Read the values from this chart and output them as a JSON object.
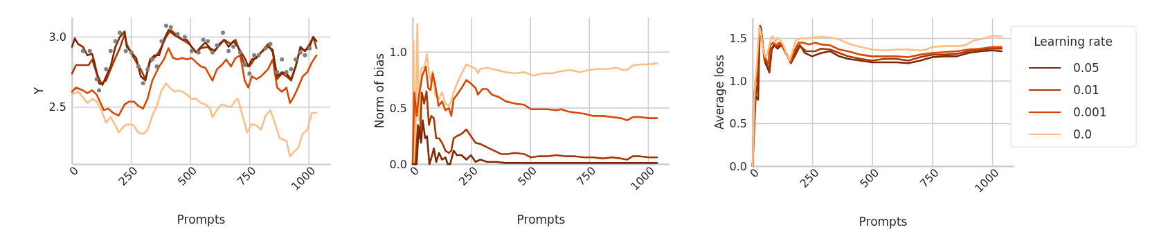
{
  "chart_data": [
    {
      "type": "line",
      "xlabel": "Prompts",
      "ylabel": "Y",
      "xlim": [
        0,
        1090
      ],
      "ylim": [
        2.095,
        3.14
      ],
      "xticks": [
        0,
        250,
        500,
        750,
        1000
      ],
      "yticks": [
        {
          "value": 2.5,
          "label": "2.5"
        },
        {
          "value": 3,
          "label": "3.0"
        }
      ],
      "grid": true,
      "series": [
        {
          "color": "#fdbe85",
          "x": [
            0,
            26,
            46,
            65,
            85,
            104,
            124,
            144,
            163,
            183,
            197,
            222,
            241,
            261,
            280,
            300,
            319,
            339,
            358,
            378,
            397,
            417,
            437,
            446,
            466,
            485,
            505,
            524,
            544,
            563,
            583,
            593,
            612,
            632,
            651,
            671,
            690,
            700,
            720,
            739,
            759,
            778,
            798,
            817,
            837,
            856,
            876,
            905,
            920,
            935,
            954,
            974,
            993,
            1013,
            1032
          ],
          "values": [
            2.59,
            2.61,
            2.57,
            2.53,
            2.56,
            2.54,
            2.48,
            2.39,
            2.43,
            2.37,
            2.32,
            2.37,
            2.38,
            2.37,
            2.32,
            2.31,
            2.34,
            2.44,
            2.51,
            2.62,
            2.67,
            2.63,
            2.61,
            2.62,
            2.61,
            2.59,
            2.56,
            2.56,
            2.53,
            2.52,
            2.49,
            2.43,
            2.48,
            2.52,
            2.51,
            2.5,
            2.55,
            2.56,
            2.44,
            2.32,
            2.38,
            2.37,
            2.34,
            2.44,
            2.48,
            2.39,
            2.28,
            2.26,
            2.15,
            2.18,
            2.21,
            2.31,
            2.34,
            2.46,
            2.46
          ]
        },
        {
          "color": "#d94801",
          "x": [
            0,
            17,
            46,
            65,
            85,
            104,
            134,
            153,
            173,
            197,
            222,
            241,
            261,
            280,
            300,
            319,
            339,
            368,
            388,
            407,
            427,
            446,
            466,
            485,
            505,
            524,
            544,
            563,
            593,
            612,
            632,
            651,
            671,
            690,
            710,
            729,
            744,
            759,
            778,
            798,
            827,
            847,
            866,
            886,
            905,
            920,
            935,
            954,
            974,
            993,
            1013,
            1032
          ],
          "values": [
            2.61,
            2.64,
            2.62,
            2.6,
            2.62,
            2.59,
            2.48,
            2.49,
            2.46,
            2.44,
            2.52,
            2.54,
            2.54,
            2.51,
            2.49,
            2.56,
            2.69,
            2.79,
            2.84,
            2.92,
            2.85,
            2.84,
            2.85,
            2.84,
            2.85,
            2.82,
            2.79,
            2.78,
            2.69,
            2.77,
            2.8,
            2.84,
            2.79,
            2.85,
            2.87,
            2.69,
            2.64,
            2.72,
            2.7,
            2.72,
            2.77,
            2.84,
            2.64,
            2.61,
            2.64,
            2.53,
            2.57,
            2.64,
            2.72,
            2.75,
            2.82,
            2.87
          ]
        },
        {
          "color": "#a63603",
          "x": [
            0,
            17,
            46,
            70,
            85,
            104,
            124,
            144,
            163,
            183,
            202,
            222,
            231,
            261,
            290,
            310,
            329,
            358,
            378,
            397,
            417,
            437,
            466,
            495,
            524,
            544,
            573,
            593,
            622,
            642,
            671,
            690,
            710,
            729,
            749,
            769,
            798,
            827,
            847,
            866,
            886,
            905,
            925,
            944,
            964,
            983,
            1003,
            1018,
            1032
          ],
          "values": [
            2.74,
            2.8,
            2.8,
            2.8,
            2.84,
            2.74,
            2.67,
            2.69,
            2.77,
            2.85,
            2.92,
            3.02,
            2.95,
            2.85,
            2.77,
            2.7,
            2.82,
            2.87,
            2.93,
            3.0,
            3.05,
            3.02,
            2.98,
            2.95,
            2.89,
            2.92,
            2.93,
            2.89,
            2.94,
            2.98,
            2.95,
            2.98,
            2.89,
            2.8,
            2.79,
            2.84,
            2.89,
            2.95,
            2.89,
            2.7,
            2.74,
            2.72,
            2.69,
            2.79,
            2.92,
            2.9,
            2.95,
            3.0,
            2.92
          ]
        },
        {
          "color": "#7f2704",
          "x": [
            0,
            12,
            26,
            46,
            65,
            85,
            95,
            114,
            129,
            144,
            163,
            183,
            202,
            222,
            231,
            251,
            271,
            290,
            310,
            329,
            349,
            368,
            388,
            407,
            427,
            446,
            466,
            485,
            505,
            524,
            544,
            563,
            583,
            603,
            622,
            642,
            661,
            681,
            700,
            729,
            744,
            759,
            778,
            798,
            827,
            847,
            866,
            886,
            905,
            925,
            944,
            964,
            983,
            1003,
            1018,
            1032
          ],
          "values": [
            2.93,
            2.99,
            2.95,
            2.93,
            2.87,
            2.88,
            2.82,
            2.67,
            2.66,
            2.72,
            2.79,
            2.93,
            3.0,
            3.04,
            2.93,
            2.89,
            2.85,
            2.72,
            2.69,
            2.84,
            2.87,
            2.87,
            2.98,
            3.05,
            3.02,
            3.0,
            2.98,
            2.98,
            2.93,
            2.89,
            2.93,
            2.96,
            2.92,
            2.9,
            2.95,
            2.98,
            2.93,
            2.97,
            2.93,
            2.85,
            2.79,
            2.84,
            2.85,
            2.89,
            2.93,
            2.91,
            2.72,
            2.75,
            2.74,
            2.7,
            2.79,
            2.93,
            2.9,
            2.93,
            3.0,
            2.97
          ]
        },
        {
          "type": "scatter",
          "marker": "circle",
          "color": "#808080",
          "x": [
            46,
            75,
            104,
            114,
            144,
            163,
            183,
            202,
            227,
            251,
            280,
            300,
            319,
            339,
            358,
            378,
            397,
            417,
            446,
            476,
            505,
            534,
            554,
            573,
            593,
            612,
            637,
            661,
            681,
            710,
            729,
            749,
            769,
            788,
            817,
            837,
            866,
            886,
            905,
            925,
            944,
            964,
            983,
            1003
          ],
          "values": [
            2.9,
            2.9,
            2.7,
            2.62,
            2.77,
            2.9,
            2.97,
            3.03,
            2.9,
            2.89,
            2.79,
            2.67,
            2.77,
            2.84,
            2.79,
            2.97,
            3.08,
            3.07,
            3.02,
            3.0,
            2.9,
            2.89,
            2.98,
            2.97,
            2.89,
            2.94,
            3.03,
            2.9,
            2.93,
            2.89,
            2.8,
            2.74,
            2.87,
            2.87,
            2.92,
            2.95,
            2.75,
            2.84,
            2.75,
            2.77,
            2.84,
            2.89,
            2.87,
            2.92
          ]
        }
      ]
    },
    {
      "type": "line",
      "xlabel": "Prompts",
      "ylabel": "Norm of bias",
      "xlim": [
        0,
        1090
      ],
      "ylim": [
        0,
        1.31
      ],
      "xticks": [
        0,
        250,
        500,
        750,
        1000
      ],
      "yticks": [
        {
          "value": 0,
          "label": "0.0"
        },
        {
          "value": 0.5,
          "label": "0.5"
        },
        {
          "value": 1,
          "label": "1.0"
        }
      ],
      "grid": true,
      "series": [
        {
          "color": "#fdbe85",
          "x": [
            0,
            4,
            10,
            20,
            26,
            36,
            51,
            61,
            71,
            80,
            85,
            95,
            110,
            125,
            139,
            154,
            164,
            174,
            188,
            208,
            228,
            247,
            267,
            277,
            287,
            316,
            355,
            395,
            434,
            473,
            512,
            552,
            591,
            630,
            669,
            709,
            748,
            787,
            826,
            866,
            891,
            910,
            934,
            964,
            1003,
            1037
          ],
          "values": [
            0,
            1.1,
            0,
            1.25,
            0.39,
            0.85,
            0.87,
            0.98,
            0.79,
            0.72,
            0.83,
            0.62,
            0.58,
            0.64,
            0.54,
            0.52,
            0.56,
            0.64,
            0.72,
            0.81,
            0.89,
            0.87,
            0.85,
            0.81,
            0.85,
            0.86,
            0.84,
            0.82,
            0.81,
            0.82,
            0.79,
            0.81,
            0.81,
            0.83,
            0.84,
            0.82,
            0.84,
            0.85,
            0.85,
            0.86,
            0.84,
            0.84,
            0.88,
            0.89,
            0.89,
            0.9
          ]
        },
        {
          "color": "#d94801",
          "x": [
            0,
            7,
            17,
            26,
            41,
            56,
            66,
            76,
            85,
            95,
            110,
            125,
            139,
            154,
            164,
            174,
            188,
            208,
            228,
            247,
            267,
            277,
            296,
            316,
            336,
            365,
            395,
            434,
            473,
            502,
            532,
            571,
            610,
            630,
            659,
            689,
            728,
            767,
            807,
            846,
            885,
            910,
            934,
            964,
            1003,
            1037
          ],
          "values": [
            0,
            0.64,
            0.43,
            0.6,
            0.79,
            0.87,
            0.68,
            0.66,
            0.81,
            0.72,
            0.52,
            0.56,
            0.48,
            0.5,
            0.43,
            0.58,
            0.62,
            0.68,
            0.75,
            0.72,
            0.68,
            0.62,
            0.67,
            0.67,
            0.62,
            0.6,
            0.56,
            0.54,
            0.53,
            0.49,
            0.49,
            0.49,
            0.48,
            0.49,
            0.47,
            0.46,
            0.45,
            0.43,
            0.43,
            0.42,
            0.41,
            0.39,
            0.42,
            0.42,
            0.41,
            0.41
          ]
        },
        {
          "color": "#a63603",
          "x": [
            0,
            12,
            22,
            31,
            39,
            49,
            59,
            69,
            79,
            90,
            100,
            112,
            125,
            139,
            154,
            164,
            174,
            188,
            208,
            228,
            247,
            267,
            287,
            306,
            326,
            355,
            375,
            404,
            434,
            473,
            502,
            532,
            571,
            610,
            650,
            689,
            728,
            767,
            807,
            846,
            885,
            910,
            934,
            964,
            1003,
            1037
          ],
          "values": [
            0,
            0,
            0.35,
            0.23,
            0.64,
            0.54,
            0.65,
            0.35,
            0.43,
            0.41,
            0.23,
            0.23,
            0.19,
            0.12,
            0.1,
            0.12,
            0.23,
            0.25,
            0.27,
            0.31,
            0.25,
            0.19,
            0.18,
            0.16,
            0.14,
            0.11,
            0.09,
            0.09,
            0.1,
            0.09,
            0.06,
            0.07,
            0.07,
            0.08,
            0.07,
            0.07,
            0.06,
            0.06,
            0.05,
            0.06,
            0.05,
            0.04,
            0.07,
            0.07,
            0.06,
            0.06
          ]
        },
        {
          "color": "#7f2704",
          "x": [
            0,
            17,
            26,
            36,
            43,
            53,
            61,
            71,
            80,
            90,
            100,
            112,
            125,
            139,
            149,
            159,
            174,
            188,
            208,
            228,
            247,
            267,
            287,
            316,
            355,
            395,
            434,
            473,
            512,
            552,
            591,
            630,
            669,
            709,
            748,
            787,
            826,
            866,
            910,
            964,
            1003,
            1037
          ],
          "values": [
            0,
            0,
            0.33,
            0.19,
            0.39,
            0.23,
            0.25,
            0,
            0.06,
            0.14,
            0.02,
            0.1,
            0.04,
            0.06,
            0,
            0,
            0.12,
            0.08,
            0.08,
            0.04,
            0.08,
            0.02,
            0.04,
            0.02,
            0.02,
            0.01,
            0.01,
            0.01,
            0.01,
            0.01,
            0.01,
            0.01,
            0.01,
            0.01,
            0.01,
            0.01,
            0.01,
            0.01,
            0.01,
            0.01,
            0.01,
            0.01
          ]
        }
      ]
    },
    {
      "type": "line",
      "xlabel": "Prompts",
      "ylabel": "Average loss",
      "legend_title": "Learning rate",
      "legend": "right",
      "xlim": [
        0,
        1088
      ],
      "ylim": [
        0,
        1.74
      ],
      "xticks": [
        0,
        250,
        500,
        750,
        1000
      ],
      "yticks": [
        {
          "value": 0,
          "label": "0.0"
        },
        {
          "value": 0.5,
          "label": "0.5"
        },
        {
          "value": 1,
          "label": "1.0"
        },
        {
          "value": 1.5,
          "label": "1.5"
        }
      ],
      "grid": true,
      "series": [
        {
          "name": "0.05",
          "color": "#7f2704",
          "x": [
            0,
            13,
            23,
            30,
            35,
            43,
            53,
            60,
            70,
            80,
            91,
            104,
            120,
            133,
            148,
            160,
            179,
            198,
            217,
            248,
            286,
            323,
            361,
            398,
            449,
            499,
            549,
            599,
            649,
            699,
            749,
            800,
            850,
            900,
            950,
            1000,
            1038
          ],
          "values": [
            0,
            0.82,
            0.78,
            1.6,
            1.63,
            1.42,
            1.21,
            1.17,
            1.1,
            1.37,
            1.42,
            1.38,
            1.42,
            1.37,
            1.28,
            1.21,
            1.31,
            1.42,
            1.33,
            1.29,
            1.33,
            1.35,
            1.29,
            1.26,
            1.24,
            1.22,
            1.22,
            1.22,
            1.21,
            1.24,
            1.28,
            1.29,
            1.29,
            1.33,
            1.35,
            1.36,
            1.35
          ]
        },
        {
          "name": "0.01",
          "color": "#a63603",
          "x": [
            0,
            10,
            20,
            28,
            31,
            39,
            50,
            60,
            70,
            79,
            91,
            104,
            117,
            129,
            145,
            160,
            175,
            195,
            223,
            261,
            286,
            323,
            361,
            398,
            449,
            499,
            549,
            599,
            649,
            699,
            749,
            800,
            850,
            900,
            950,
            1000,
            1038
          ],
          "values": [
            0,
            0.78,
            0.96,
            1.45,
            1.65,
            1.49,
            1.24,
            1.21,
            1.12,
            1.38,
            1.44,
            1.4,
            1.44,
            1.38,
            1.29,
            1.21,
            1.33,
            1.42,
            1.35,
            1.35,
            1.38,
            1.37,
            1.33,
            1.29,
            1.26,
            1.24,
            1.26,
            1.26,
            1.24,
            1.28,
            1.31,
            1.31,
            1.32,
            1.35,
            1.37,
            1.38,
            1.38
          ]
        },
        {
          "name": "0.001",
          "color": "#d94801",
          "x": [
            0,
            8,
            16,
            25,
            29,
            38,
            48,
            58,
            66,
            73,
            85,
            98,
            110,
            123,
            142,
            158,
            173,
            192,
            211,
            236,
            261,
            286,
            323,
            361,
            398,
            449,
            499,
            549,
            599,
            649,
            699,
            749,
            800,
            850,
            900,
            950,
            1000,
            1038
          ],
          "values": [
            0,
            0.89,
            1.06,
            1.45,
            1.63,
            1.52,
            1.31,
            1.24,
            1.21,
            1.42,
            1.45,
            1.42,
            1.45,
            1.42,
            1.31,
            1.22,
            1.35,
            1.45,
            1.45,
            1.43,
            1.45,
            1.43,
            1.42,
            1.37,
            1.35,
            1.31,
            1.29,
            1.29,
            1.29,
            1.28,
            1.31,
            1.33,
            1.34,
            1.35,
            1.37,
            1.38,
            1.4,
            1.4
          ]
        },
        {
          "name": "0.0",
          "color": "#fdbe85",
          "x": [
            0,
            5,
            10,
            16,
            23,
            29,
            35,
            45,
            54,
            60,
            70,
            79,
            85,
            95,
            104,
            117,
            129,
            142,
            154,
            167,
            179,
            198,
            223,
            248,
            286,
            323,
            361,
            398,
            449,
            499,
            549,
            599,
            649,
            699,
            724,
            749,
            800,
            850,
            887,
            925,
            950,
            1000,
            1038
          ],
          "values": [
            0,
            0.53,
            0.99,
            1.13,
            1.45,
            1.63,
            1.56,
            1.35,
            1.28,
            1.31,
            1.42,
            1.52,
            1.52,
            1.45,
            1.51,
            1.47,
            1.42,
            1.31,
            1.24,
            1.35,
            1.47,
            1.5,
            1.5,
            1.51,
            1.52,
            1.51,
            1.49,
            1.44,
            1.4,
            1.37,
            1.36,
            1.37,
            1.37,
            1.36,
            1.37,
            1.4,
            1.41,
            1.41,
            1.42,
            1.48,
            1.49,
            1.53,
            1.52
          ]
        }
      ]
    }
  ]
}
